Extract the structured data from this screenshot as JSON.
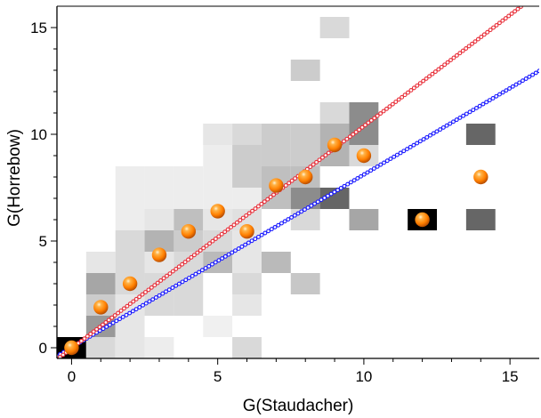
{
  "chart_data": {
    "type": "scatter",
    "title": "",
    "xlabel": "G(Staudacher)",
    "ylabel": "G(Horrebow)",
    "xlim": [
      -0.5,
      16
    ],
    "ylim": [
      -0.5,
      16
    ],
    "x_ticks": [
      0,
      5,
      10,
      15
    ],
    "y_ticks": [
      0,
      5,
      10,
      15
    ],
    "x_tick_labels": [
      "0",
      "5",
      "10",
      "15"
    ],
    "y_tick_labels": [
      "0",
      "5",
      "10",
      "15"
    ],
    "grid": false,
    "legend": "none",
    "series": [
      {
        "kind": "points",
        "marker": "orange-sphere",
        "color": "#ff8c1a",
        "points": [
          [
            0,
            0
          ],
          [
            1,
            1.9
          ],
          [
            2,
            3
          ],
          [
            3,
            4.35
          ],
          [
            4,
            5.45
          ],
          [
            5,
            6.4
          ],
          [
            6,
            5.45
          ],
          [
            7,
            7.6
          ],
          [
            8,
            8
          ],
          [
            9,
            9.5
          ],
          [
            10,
            9
          ],
          [
            12,
            6
          ],
          [
            14,
            8
          ]
        ]
      },
      {
        "kind": "fit-line",
        "style": "dotted-circles",
        "color": "#1a1aff",
        "x": [
          -0.5,
          16
        ],
        "y": [
          -0.39,
          12.97
        ]
      },
      {
        "kind": "fit-line",
        "style": "dotted-circles",
        "color": "#e8303a",
        "x": [
          -0.5,
          16
        ],
        "y": [
          -0.55,
          16.63
        ]
      }
    ],
    "heatmap": {
      "description_scale": "fraction gray, 0 = white, 1 = black",
      "cells": [
        [
          0,
          0,
          1.0
        ],
        [
          1,
          0,
          0.15
        ],
        [
          2,
          0,
          0.1
        ],
        [
          3,
          0,
          0.07
        ],
        [
          6,
          0,
          0.15
        ],
        [
          1,
          1,
          0.4
        ],
        [
          2,
          1,
          0.1
        ],
        [
          5,
          1,
          0.06
        ],
        [
          1,
          2,
          0.2
        ],
        [
          2,
          2,
          0.1
        ],
        [
          3,
          2,
          0.15
        ],
        [
          4,
          2,
          0.15
        ],
        [
          6,
          2,
          0.1
        ],
        [
          1,
          3,
          0.35
        ],
        [
          2,
          3,
          0.15
        ],
        [
          3,
          3,
          0.15
        ],
        [
          4,
          3,
          0.15
        ],
        [
          6,
          3,
          0.15
        ],
        [
          8,
          3,
          0.22
        ],
        [
          1,
          4,
          0.1
        ],
        [
          2,
          4,
          0.15
        ],
        [
          3,
          4,
          0.1
        ],
        [
          4,
          4,
          0.15
        ],
        [
          5,
          4,
          0.27
        ],
        [
          6,
          4,
          0.1
        ],
        [
          7,
          4,
          0.27
        ],
        [
          2,
          5,
          0.15
        ],
        [
          3,
          5,
          0.3
        ],
        [
          4,
          5,
          0.2
        ],
        [
          5,
          5,
          0.15
        ],
        [
          6,
          5,
          0.1
        ],
        [
          2,
          6,
          0.07
        ],
        [
          3,
          6,
          0.1
        ],
        [
          4,
          6,
          0.25
        ],
        [
          5,
          6,
          0.1
        ],
        [
          6,
          6,
          0.12
        ],
        [
          8,
          6,
          0.15
        ],
        [
          10,
          6,
          0.35
        ],
        [
          12,
          6,
          1.0
        ],
        [
          14,
          6,
          0.6
        ],
        [
          2,
          7,
          0.07
        ],
        [
          3,
          7,
          0.07
        ],
        [
          4,
          7,
          0.07
        ],
        [
          5,
          7,
          0.07
        ],
        [
          6,
          7,
          0.07
        ],
        [
          7,
          7,
          0.25
        ],
        [
          8,
          7,
          0.45
        ],
        [
          9,
          7,
          0.6
        ],
        [
          2,
          8,
          0.07
        ],
        [
          3,
          8,
          0.07
        ],
        [
          4,
          8,
          0.07
        ],
        [
          5,
          8,
          0.07
        ],
        [
          6,
          8,
          0.2
        ],
        [
          7,
          8,
          0.25
        ],
        [
          8,
          8,
          0.25
        ],
        [
          5,
          9,
          0.07
        ],
        [
          6,
          9,
          0.2
        ],
        [
          7,
          9,
          0.2
        ],
        [
          8,
          9,
          0.2
        ],
        [
          9,
          9,
          0.3
        ],
        [
          10,
          9,
          0.15
        ],
        [
          5,
          10,
          0.1
        ],
        [
          6,
          10,
          0.15
        ],
        [
          7,
          10,
          0.2
        ],
        [
          8,
          10,
          0.2
        ],
        [
          9,
          10,
          0.3
        ],
        [
          10,
          10,
          0.45
        ],
        [
          14,
          10,
          0.6
        ],
        [
          9,
          11,
          0.15
        ],
        [
          10,
          11,
          0.45
        ],
        [
          8,
          13,
          0.2
        ],
        [
          9,
          15,
          0.15
        ]
      ]
    }
  }
}
